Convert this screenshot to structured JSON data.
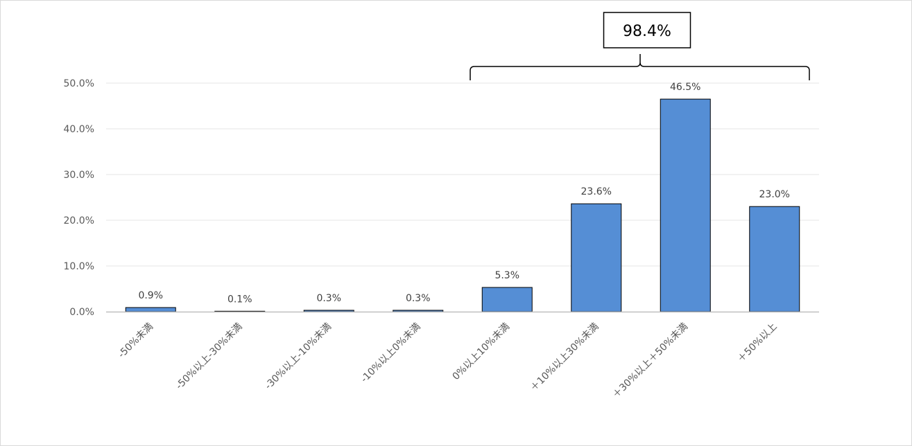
{
  "chart_data": {
    "type": "bar",
    "title": "",
    "xlabel": "",
    "ylabel": "",
    "categories": [
      "-50%未満",
      "-50%以上-30%未満",
      "-30%以上-10%未満",
      "-10%以上0%未満",
      "0%以上10%未満",
      "＋10%以上30%未満",
      "＋30%以上＋50%未満",
      "＋50%以上"
    ],
    "values": [
      0.9,
      0.1,
      0.3,
      0.3,
      5.3,
      23.6,
      46.5,
      23.0
    ],
    "value_labels": [
      "0.9%",
      "0.1%",
      "0.3%",
      "0.3%",
      "5.3%",
      "23.6%",
      "46.5%",
      "23.0%"
    ],
    "ylim": [
      0,
      50
    ],
    "yticks": [
      0,
      10,
      20,
      30,
      40,
      50
    ],
    "ytick_labels": [
      "0.0%",
      "10.0%",
      "20.0%",
      "30.0%",
      "40.0%",
      "50.0%"
    ],
    "grid": true,
    "legend": "none",
    "bar_color": "#558ED5",
    "annotation": {
      "text": "98.4%",
      "bracket_from_category": 4,
      "bracket_to_category": 7
    }
  }
}
